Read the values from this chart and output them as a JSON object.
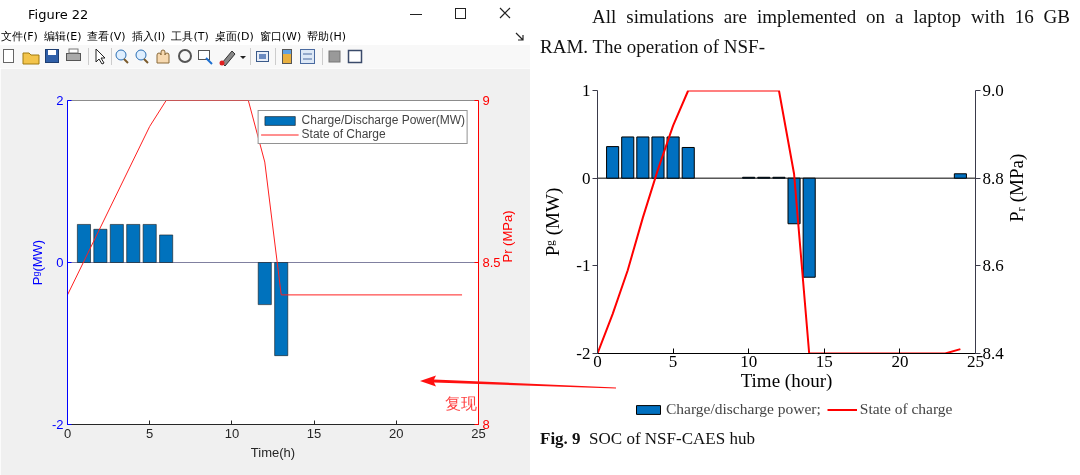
{
  "chart_data": [
    {
      "type": "bar",
      "annotations": [
        "Figure 22",
        "文件(F)",
        "编辑(E)",
        "查看(V)",
        "插入(I)",
        "工具(T)",
        "桌面(D)",
        "窗口(W)",
        "帮助(H)",
        "复现"
      ],
      "xlabel": "Time(h)",
      "ylabel": "Pᵍ(MW)",
      "y2label": "Pr (MPa)",
      "xlim": [
        0,
        25
      ],
      "xticks": [
        0,
        5,
        10,
        15,
        20,
        25
      ],
      "ylim": [
        -2,
        2
      ],
      "yticks": [
        -2,
        0,
        2
      ],
      "y2lim": [
        8,
        9
      ],
      "y2ticks": [
        8,
        8.5,
        9
      ],
      "series": [
        {
          "name": "Charge/Discharge Power(MW)",
          "color": "#0072bd",
          "x": [
            1,
            2,
            3,
            4,
            5,
            6,
            12,
            13
          ],
          "values": [
            0.47,
            0.41,
            0.47,
            0.47,
            0.47,
            0.34,
            -0.52,
            -1.15
          ]
        },
        {
          "name": "State of Charge",
          "type": "line",
          "axis": "y2",
          "color": "#ff2020",
          "x": [
            0,
            5,
            6,
            11,
            12,
            13,
            24
          ],
          "values": [
            8.4,
            8.92,
            9,
            9,
            8.81,
            8.4,
            8.4
          ]
        }
      ],
      "ref_lines": [
        {
          "axis": "y",
          "value": 0,
          "color": "#8080a0"
        }
      ],
      "legend": "top right"
    },
    {
      "type": "bar",
      "annotations": [
        "All simulations are implemented on a laptop with 16 GB RAM. The operation of NSF-",
        "Fig. 9  SOC of NSF-CAES hub"
      ],
      "xlabel": "Time (hour)",
      "ylabel": "Pᵍ (MW)",
      "y2label": "Pᵣ (MPa)",
      "xlim": [
        0,
        25
      ],
      "xticks": [
        0,
        5,
        10,
        15,
        20,
        25
      ],
      "ylim": [
        -2,
        1
      ],
      "yticks": [
        -2,
        -1,
        0,
        1
      ],
      "y2lim": [
        8.4,
        9.0
      ],
      "y2ticks": [
        8.4,
        8.6,
        8.8,
        {
          "value": 9,
          "label": "9.0"
        }
      ],
      "series": [
        {
          "name": "Charge/discharge power;",
          "color": "#0070c0",
          "x": [
            1,
            2,
            3,
            4,
            5,
            6,
            10,
            11,
            12,
            13,
            14,
            24
          ],
          "values": [
            0.36,
            0.47,
            0.47,
            0.47,
            0.47,
            0.35,
            0.01,
            0.01,
            0.01,
            -0.52,
            -1.13,
            0.05
          ]
        },
        {
          "name": "State of charge",
          "type": "line",
          "axis": "y2",
          "color": "#ff0000",
          "x": [
            0,
            1,
            2,
            3,
            4,
            5,
            6,
            12,
            13,
            14,
            23,
            24
          ],
          "values": [
            8.4,
            8.49,
            8.59,
            8.71,
            8.82,
            8.92,
            9.0,
            9.0,
            8.81,
            8.4,
            8.4,
            8.41
          ]
        }
      ],
      "ref_lines": [
        {
          "axis": "y",
          "value": 0,
          "color": "#000000"
        }
      ],
      "legend": "bottom"
    }
  ]
}
